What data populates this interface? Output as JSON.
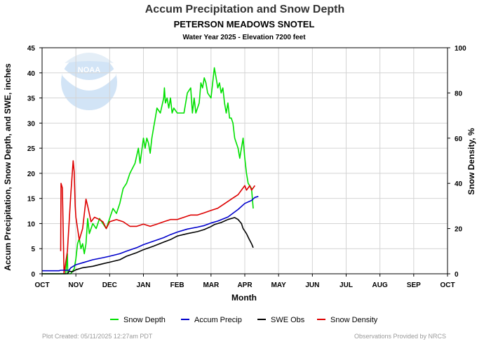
{
  "colors": {
    "snow_depth": "#00e000",
    "accum_precip": "#0000cc",
    "swe_obs": "#000000",
    "snow_density": "#dd0000",
    "grid": "#d4d4d4",
    "subtitle": "#0000cc",
    "footer": "#9a9a9a"
  },
  "logo_text": "NOAA",
  "footer": {
    "left": "Plot Created: 05/11/2025 12:27am PDT",
    "right": "Observations Provided by NRCS"
  },
  "chart_data": {
    "type": "line",
    "title": "Accum Precipitation and Snow Depth",
    "subtitle": "PETERSON MEADOWS SNOTEL",
    "subtitle2": "Water Year 2025 -  Elevation 7200 feet",
    "xlabel": "Month",
    "ylabel": "Accum Precipitation, Snow Depth, and SWE, inches",
    "y2label": "Snow Density, %",
    "categories": [
      "OCT",
      "NOV",
      "DEC",
      "JAN",
      "FEB",
      "MAR",
      "APR",
      "MAY",
      "JUN",
      "JUL",
      "AUG",
      "SEP",
      "OCT"
    ],
    "ylim": [
      0,
      45
    ],
    "y2lim": [
      0,
      100
    ],
    "yticks": [
      0,
      5,
      10,
      15,
      20,
      25,
      30,
      35,
      40,
      45
    ],
    "y2ticks": [
      0,
      20,
      40,
      60,
      80,
      100
    ],
    "grid": true,
    "legend_position": "bottom",
    "series": [
      {
        "name": "Snow Depth",
        "axis": "left",
        "color_key": "snow_depth",
        "points": [
          [
            0,
            0
          ],
          [
            0.7,
            0
          ],
          [
            0.75,
            4
          ],
          [
            0.76,
            0
          ],
          [
            0.85,
            0
          ],
          [
            0.95,
            1
          ],
          [
            1.0,
            3
          ],
          [
            1.05,
            6
          ],
          [
            1.1,
            7
          ],
          [
            1.15,
            5
          ],
          [
            1.2,
            6
          ],
          [
            1.25,
            4
          ],
          [
            1.3,
            6
          ],
          [
            1.35,
            11
          ],
          [
            1.4,
            8
          ],
          [
            1.5,
            10
          ],
          [
            1.6,
            9
          ],
          [
            1.7,
            11
          ],
          [
            1.8,
            10
          ],
          [
            1.9,
            9
          ],
          [
            2.0,
            11
          ],
          [
            2.1,
            13
          ],
          [
            2.2,
            12
          ],
          [
            2.3,
            14
          ],
          [
            2.4,
            17
          ],
          [
            2.5,
            18
          ],
          [
            2.6,
            20
          ],
          [
            2.75,
            22
          ],
          [
            2.85,
            25
          ],
          [
            2.9,
            22
          ],
          [
            3.0,
            27
          ],
          [
            3.05,
            25
          ],
          [
            3.1,
            27
          ],
          [
            3.15,
            26
          ],
          [
            3.2,
            24
          ],
          [
            3.25,
            27
          ],
          [
            3.3,
            29
          ],
          [
            3.35,
            31
          ],
          [
            3.4,
            33
          ],
          [
            3.5,
            32
          ],
          [
            3.6,
            35
          ],
          [
            3.62,
            37
          ],
          [
            3.65,
            34
          ],
          [
            3.7,
            35
          ],
          [
            3.75,
            33
          ],
          [
            3.8,
            35
          ],
          [
            3.85,
            32
          ],
          [
            3.9,
            33
          ],
          [
            4.0,
            32
          ],
          [
            4.2,
            32
          ],
          [
            4.3,
            36
          ],
          [
            4.4,
            37
          ],
          [
            4.45,
            32
          ],
          [
            4.5,
            35
          ],
          [
            4.55,
            32
          ],
          [
            4.65,
            34
          ],
          [
            4.7,
            38
          ],
          [
            4.75,
            37
          ],
          [
            4.8,
            39
          ],
          [
            4.85,
            38
          ],
          [
            4.9,
            36
          ],
          [
            5.0,
            35
          ],
          [
            5.05,
            38
          ],
          [
            5.1,
            41
          ],
          [
            5.15,
            39
          ],
          [
            5.2,
            37
          ],
          [
            5.25,
            38
          ],
          [
            5.3,
            36
          ],
          [
            5.35,
            37
          ],
          [
            5.4,
            34
          ],
          [
            5.45,
            32
          ],
          [
            5.5,
            34
          ],
          [
            5.55,
            31
          ],
          [
            5.6,
            31
          ],
          [
            5.65,
            30
          ],
          [
            5.7,
            27
          ],
          [
            5.75,
            26
          ],
          [
            5.8,
            25
          ],
          [
            5.85,
            23
          ],
          [
            5.9,
            25
          ],
          [
            5.95,
            27
          ],
          [
            6.0,
            23
          ],
          [
            6.05,
            20
          ],
          [
            6.1,
            18
          ],
          [
            6.2,
            17
          ],
          [
            6.25,
            13
          ]
        ]
      },
      {
        "name": "Accum Precip",
        "axis": "left",
        "color_key": "accum_precip",
        "points": [
          [
            0,
            0.6
          ],
          [
            0.5,
            0.6
          ],
          [
            0.55,
            0.7
          ],
          [
            0.8,
            0.7
          ],
          [
            0.85,
            1.2
          ],
          [
            1.0,
            1.8
          ],
          [
            1.2,
            2.2
          ],
          [
            1.5,
            2.8
          ],
          [
            1.8,
            3.2
          ],
          [
            2.0,
            3.5
          ],
          [
            2.3,
            4.0
          ],
          [
            2.5,
            4.5
          ],
          [
            2.8,
            5.2
          ],
          [
            3.0,
            5.8
          ],
          [
            3.3,
            6.5
          ],
          [
            3.6,
            7.2
          ],
          [
            3.8,
            7.8
          ],
          [
            4.0,
            8.3
          ],
          [
            4.3,
            8.9
          ],
          [
            4.6,
            9.3
          ],
          [
            4.8,
            9.6
          ],
          [
            5.0,
            10.1
          ],
          [
            5.2,
            10.5
          ],
          [
            5.5,
            11.3
          ],
          [
            5.8,
            12.8
          ],
          [
            6.0,
            14.0
          ],
          [
            6.2,
            14.6
          ],
          [
            6.3,
            15.2
          ],
          [
            6.4,
            15.4
          ]
        ]
      },
      {
        "name": "SWE Obs",
        "axis": "left",
        "color_key": "swe_obs",
        "points": [
          [
            0,
            0
          ],
          [
            0.75,
            0
          ],
          [
            0.8,
            0.5
          ],
          [
            0.9,
            0.4
          ],
          [
            1.0,
            0.8
          ],
          [
            1.2,
            1.2
          ],
          [
            1.5,
            1.5
          ],
          [
            1.8,
            2.0
          ],
          [
            2.0,
            2.3
          ],
          [
            2.3,
            2.8
          ],
          [
            2.5,
            3.5
          ],
          [
            2.8,
            4.2
          ],
          [
            3.0,
            4.8
          ],
          [
            3.3,
            5.5
          ],
          [
            3.6,
            6.3
          ],
          [
            3.8,
            6.8
          ],
          [
            4.0,
            7.5
          ],
          [
            4.3,
            8.0
          ],
          [
            4.6,
            8.4
          ],
          [
            4.8,
            8.8
          ],
          [
            5.0,
            9.4
          ],
          [
            5.1,
            9.8
          ],
          [
            5.3,
            10.2
          ],
          [
            5.5,
            10.8
          ],
          [
            5.7,
            11.2
          ],
          [
            5.8,
            10.8
          ],
          [
            5.9,
            10.0
          ],
          [
            5.95,
            9.0
          ],
          [
            6.05,
            8.0
          ],
          [
            6.12,
            7.0
          ],
          [
            6.2,
            6.0
          ],
          [
            6.25,
            5.2
          ]
        ]
      },
      {
        "name": "Snow Density",
        "axis": "right",
        "color_key": "snow_density",
        "points": [
          [
            0.55,
            10
          ],
          [
            0.56,
            40
          ],
          [
            0.6,
            38
          ],
          [
            0.65,
            0
          ],
          [
            0.75,
            10
          ],
          [
            0.85,
            35
          ],
          [
            0.92,
            50
          ],
          [
            0.95,
            45
          ],
          [
            0.98,
            30
          ],
          [
            1.0,
            25
          ],
          [
            1.05,
            20
          ],
          [
            1.1,
            15
          ],
          [
            1.2,
            20
          ],
          [
            1.3,
            33
          ],
          [
            1.35,
            30
          ],
          [
            1.45,
            23
          ],
          [
            1.55,
            25
          ],
          [
            1.7,
            24
          ],
          [
            1.8,
            23
          ],
          [
            1.9,
            20
          ],
          [
            2.0,
            23
          ],
          [
            2.2,
            24
          ],
          [
            2.4,
            23
          ],
          [
            2.6,
            21
          ],
          [
            2.8,
            21
          ],
          [
            3.0,
            22
          ],
          [
            3.2,
            21
          ],
          [
            3.4,
            22
          ],
          [
            3.6,
            23
          ],
          [
            3.8,
            24
          ],
          [
            4.0,
            24
          ],
          [
            4.2,
            25
          ],
          [
            4.4,
            26
          ],
          [
            4.6,
            26
          ],
          [
            4.8,
            27
          ],
          [
            5.0,
            28
          ],
          [
            5.2,
            29
          ],
          [
            5.4,
            31
          ],
          [
            5.6,
            33
          ],
          [
            5.8,
            35
          ],
          [
            5.9,
            37
          ],
          [
            6.0,
            39
          ],
          [
            6.05,
            37
          ],
          [
            6.1,
            38
          ],
          [
            6.15,
            39
          ],
          [
            6.2,
            37
          ],
          [
            6.25,
            38
          ],
          [
            6.3,
            39
          ]
        ]
      }
    ]
  }
}
